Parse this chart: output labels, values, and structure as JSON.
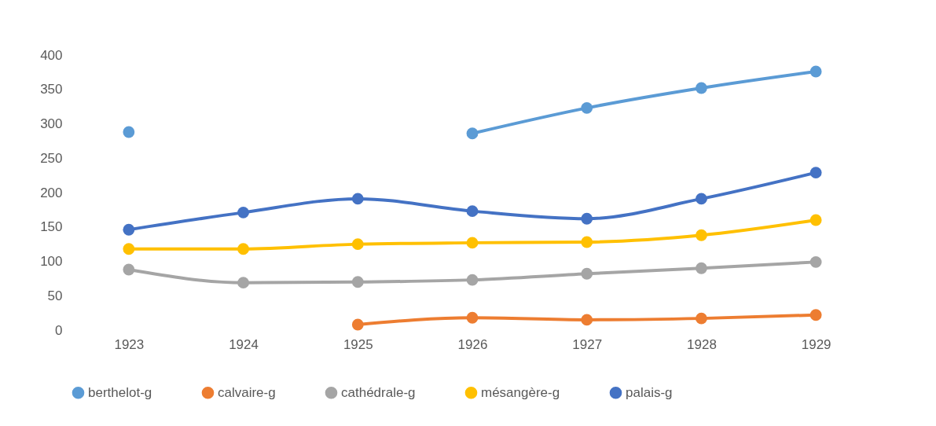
{
  "chart_data": {
    "type": "line",
    "categories": [
      "1923",
      "1924",
      "1925",
      "1926",
      "1927",
      "1928",
      "1929"
    ],
    "series": [
      {
        "name": "berthelot-g",
        "color": "#5b9bd5",
        "values": [
          288,
          null,
          null,
          286,
          323,
          352,
          376
        ]
      },
      {
        "name": "calvaire-g",
        "color": "#ed7d31",
        "values": [
          null,
          null,
          8,
          18,
          15,
          17,
          22
        ]
      },
      {
        "name": "cathédrale-g",
        "color": "#a5a5a5",
        "values": [
          88,
          69,
          70,
          73,
          82,
          90,
          99
        ]
      },
      {
        "name": "mésangère-g",
        "color": "#ffc000",
        "values": [
          118,
          118,
          125,
          127,
          128,
          138,
          160
        ]
      },
      {
        "name": "palais-g",
        "color": "#4472c4",
        "values": [
          146,
          171,
          191,
          173,
          162,
          191,
          229
        ]
      }
    ],
    "ylim": [
      0,
      400
    ],
    "yticks": [
      0,
      50,
      100,
      150,
      200,
      250,
      300,
      350,
      400
    ],
    "grid": false,
    "legend": "bottom",
    "marker": "circle",
    "line_style": "solid"
  }
}
